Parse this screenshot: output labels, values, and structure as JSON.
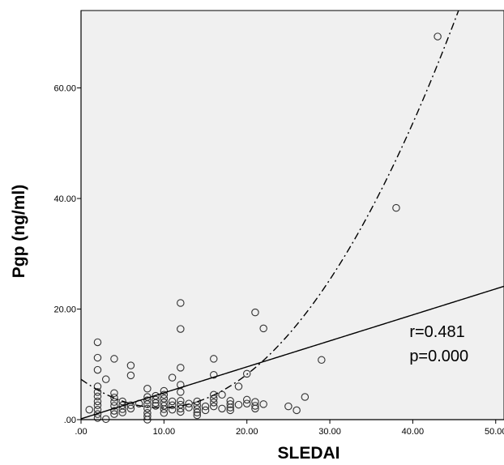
{
  "chart_data": {
    "type": "scatter",
    "title": "",
    "xlabel": "SLEDAI",
    "ylabel": "Pgp (ng/ml)",
    "xlim": [
      0,
      51
    ],
    "ylim": [
      0,
      74
    ],
    "x_ticks": [
      {
        "value": 0,
        "label": ".00"
      },
      {
        "value": 10,
        "label": "10.00"
      },
      {
        "value": 20,
        "label": "20.00"
      },
      {
        "value": 30,
        "label": "30.00"
      },
      {
        "value": 40,
        "label": "40.00"
      },
      {
        "value": 50,
        "label": "50.00"
      }
    ],
    "y_ticks": [
      {
        "value": 0,
        "label": ".00"
      },
      {
        "value": 20,
        "label": "20.00"
      },
      {
        "value": 40,
        "label": "40.00"
      },
      {
        "value": 60,
        "label": "60.00"
      }
    ],
    "grid": false,
    "background_color": "#f0f0f0",
    "marker_color": "#333333",
    "points": [
      [
        1,
        1.8
      ],
      [
        2,
        14.0
      ],
      [
        2,
        11.2
      ],
      [
        2,
        9.0
      ],
      [
        2,
        6.0
      ],
      [
        2,
        5.0
      ],
      [
        2,
        4.2
      ],
      [
        2,
        3.3
      ],
      [
        2,
        2.6
      ],
      [
        2,
        1.8
      ],
      [
        2,
        1.0
      ],
      [
        2,
        0.3
      ],
      [
        3,
        7.3
      ],
      [
        3,
        0.1
      ],
      [
        4,
        11.0
      ],
      [
        4,
        4.8
      ],
      [
        4,
        4.0
      ],
      [
        4,
        3.2
      ],
      [
        4,
        2.5
      ],
      [
        4,
        1.6
      ],
      [
        4,
        1.0
      ],
      [
        5,
        3.3
      ],
      [
        5,
        2.6
      ],
      [
        5,
        1.9
      ],
      [
        5,
        1.3
      ],
      [
        6,
        9.8
      ],
      [
        6,
        8.0
      ],
      [
        6,
        2.6
      ],
      [
        6,
        2.0
      ],
      [
        7,
        2.9
      ],
      [
        8,
        5.6
      ],
      [
        8,
        4.1
      ],
      [
        8,
        3.5
      ],
      [
        8,
        2.8
      ],
      [
        8,
        2.0
      ],
      [
        8,
        1.2
      ],
      [
        8,
        0.6
      ],
      [
        8,
        0.0
      ],
      [
        9,
        4.3
      ],
      [
        9,
        3.6
      ],
      [
        9,
        3.0
      ],
      [
        9,
        2.5
      ],
      [
        10,
        5.2
      ],
      [
        10,
        4.5
      ],
      [
        10,
        3.8
      ],
      [
        10,
        3.1
      ],
      [
        10,
        2.5
      ],
      [
        10,
        1.9
      ],
      [
        10,
        1.2
      ],
      [
        11,
        7.6
      ],
      [
        11,
        3.3
      ],
      [
        11,
        2.6
      ],
      [
        11,
        1.8
      ],
      [
        12,
        21.1
      ],
      [
        12,
        16.4
      ],
      [
        12,
        9.4
      ],
      [
        12,
        6.3
      ],
      [
        12,
        5.0
      ],
      [
        12,
        3.4
      ],
      [
        12,
        2.7
      ],
      [
        12,
        2.0
      ],
      [
        12,
        1.4
      ],
      [
        13,
        2.9
      ],
      [
        13,
        2.2
      ],
      [
        14,
        3.3
      ],
      [
        14,
        2.6
      ],
      [
        14,
        1.9
      ],
      [
        14,
        1.3
      ],
      [
        14,
        0.8
      ],
      [
        15,
        2.4
      ],
      [
        15,
        1.7
      ],
      [
        16,
        11.0
      ],
      [
        16,
        8.1
      ],
      [
        16,
        4.5
      ],
      [
        16,
        3.8
      ],
      [
        16,
        3.1
      ],
      [
        16,
        2.4
      ],
      [
        17,
        4.5
      ],
      [
        17,
        2.0
      ],
      [
        18,
        3.4
      ],
      [
        18,
        2.8
      ],
      [
        18,
        2.2
      ],
      [
        18,
        1.7
      ],
      [
        19,
        6.0
      ],
      [
        19,
        2.7
      ],
      [
        20,
        8.3
      ],
      [
        20,
        3.6
      ],
      [
        20,
        2.9
      ],
      [
        21,
        19.4
      ],
      [
        21,
        3.2
      ],
      [
        21,
        2.5
      ],
      [
        21,
        2.0
      ],
      [
        22,
        16.5
      ],
      [
        22,
        2.8
      ],
      [
        25,
        2.4
      ],
      [
        26,
        1.7
      ],
      [
        27,
        4.1
      ],
      [
        29,
        10.8
      ],
      [
        38,
        38.3
      ],
      [
        43,
        69.3
      ]
    ],
    "fit_lines": [
      {
        "style": "solid",
        "kind": "linear",
        "intercept": 0.15,
        "slope": 0.47
      },
      {
        "style": "dash-dot",
        "kind": "quadratic",
        "coef": [
          7.3,
          -1.07,
          0.0557
        ]
      }
    ],
    "annotations": [
      "r=0.481",
      "p=0.000"
    ]
  }
}
